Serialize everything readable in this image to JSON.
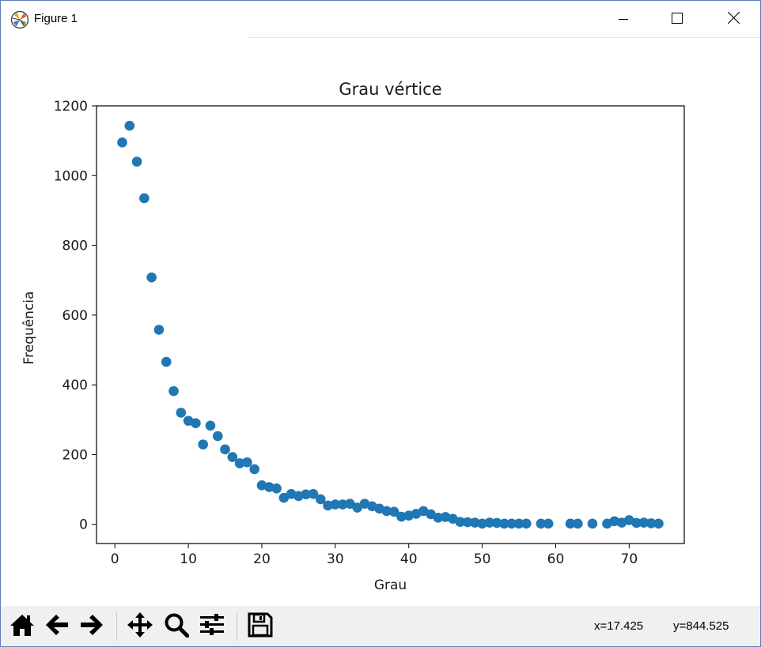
{
  "window": {
    "title": "Figure 1"
  },
  "toolbar": {
    "buttons": [
      "home-icon",
      "back-icon",
      "forward-icon",
      "pan-icon",
      "zoom-icon",
      "configure-icon",
      "save-icon"
    ],
    "coord_x": "x=17.425",
    "coord_y": "y=844.525"
  },
  "chart_data": {
    "type": "scatter",
    "title": "Grau vértice",
    "xlabel": "Grau",
    "ylabel": "Frequência",
    "xlim": [
      -2.5,
      77.5
    ],
    "ylim": [
      -55,
      1200
    ],
    "xticks": [
      0,
      10,
      20,
      30,
      40,
      50,
      60,
      70
    ],
    "yticks": [
      0,
      200,
      400,
      600,
      800,
      1000,
      1200
    ],
    "color": "#1f77b4",
    "grid": false,
    "x": [
      1,
      2,
      3,
      4,
      5,
      6,
      7,
      8,
      9,
      10,
      11,
      12,
      13,
      14,
      15,
      16,
      17,
      18,
      19,
      20,
      21,
      22,
      23,
      24,
      25,
      26,
      27,
      28,
      29,
      30,
      31,
      32,
      33,
      34,
      35,
      36,
      37,
      38,
      39,
      40,
      41,
      42,
      43,
      44,
      45,
      46,
      47,
      48,
      49,
      50,
      51,
      52,
      53,
      54,
      55,
      56,
      58,
      59,
      62,
      63,
      65,
      67,
      68,
      69,
      70,
      71,
      72,
      73,
      74
    ],
    "y": [
      1095,
      1143,
      1040,
      935,
      708,
      558,
      466,
      382,
      320,
      297,
      290,
      229,
      283,
      253,
      215,
      193,
      175,
      178,
      158,
      112,
      107,
      103,
      76,
      87,
      81,
      86,
      87,
      72,
      54,
      57,
      57,
      59,
      48,
      59,
      52,
      45,
      38,
      36,
      22,
      25,
      30,
      38,
      29,
      19,
      21,
      16,
      7,
      6,
      5,
      2,
      5,
      4,
      2,
      2,
      2,
      2,
      2,
      2,
      2,
      2,
      2,
      2,
      9,
      5,
      12,
      4,
      5,
      3,
      2
    ]
  }
}
